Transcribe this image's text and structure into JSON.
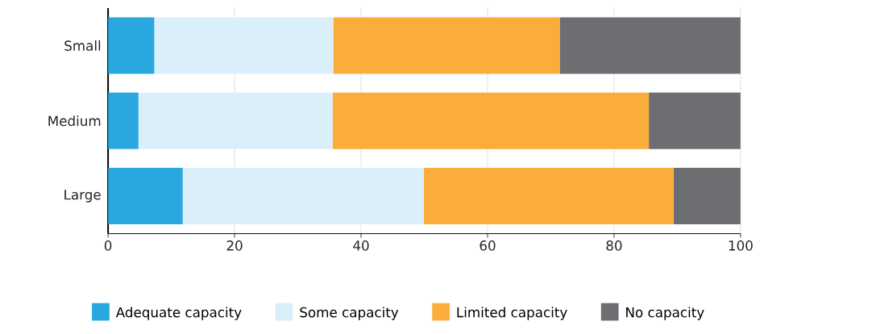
{
  "chart_data": {
    "type": "bar",
    "orientation": "horizontal",
    "stacked": true,
    "categories": [
      "Small",
      "Medium",
      "Large"
    ],
    "series": [
      {
        "name": "Adequate capacity",
        "color": "#29a8e0",
        "values": [
          7.3,
          4.8,
          11.8
        ]
      },
      {
        "name": "Some capacity",
        "color": "#dbeffb",
        "values": [
          28.3,
          30.7,
          38.1
        ]
      },
      {
        "name": "Limited capacity",
        "color": "#fbad3b",
        "values": [
          35.8,
          50.0,
          39.5
        ]
      },
      {
        "name": "No capacity",
        "color": "#6d6e71",
        "values": [
          28.6,
          14.5,
          10.6
        ]
      }
    ],
    "xlim": [
      0,
      100
    ],
    "xticks": [
      0,
      20,
      40,
      60,
      80,
      100
    ],
    "grid": "x",
    "legend": "bottom"
  }
}
